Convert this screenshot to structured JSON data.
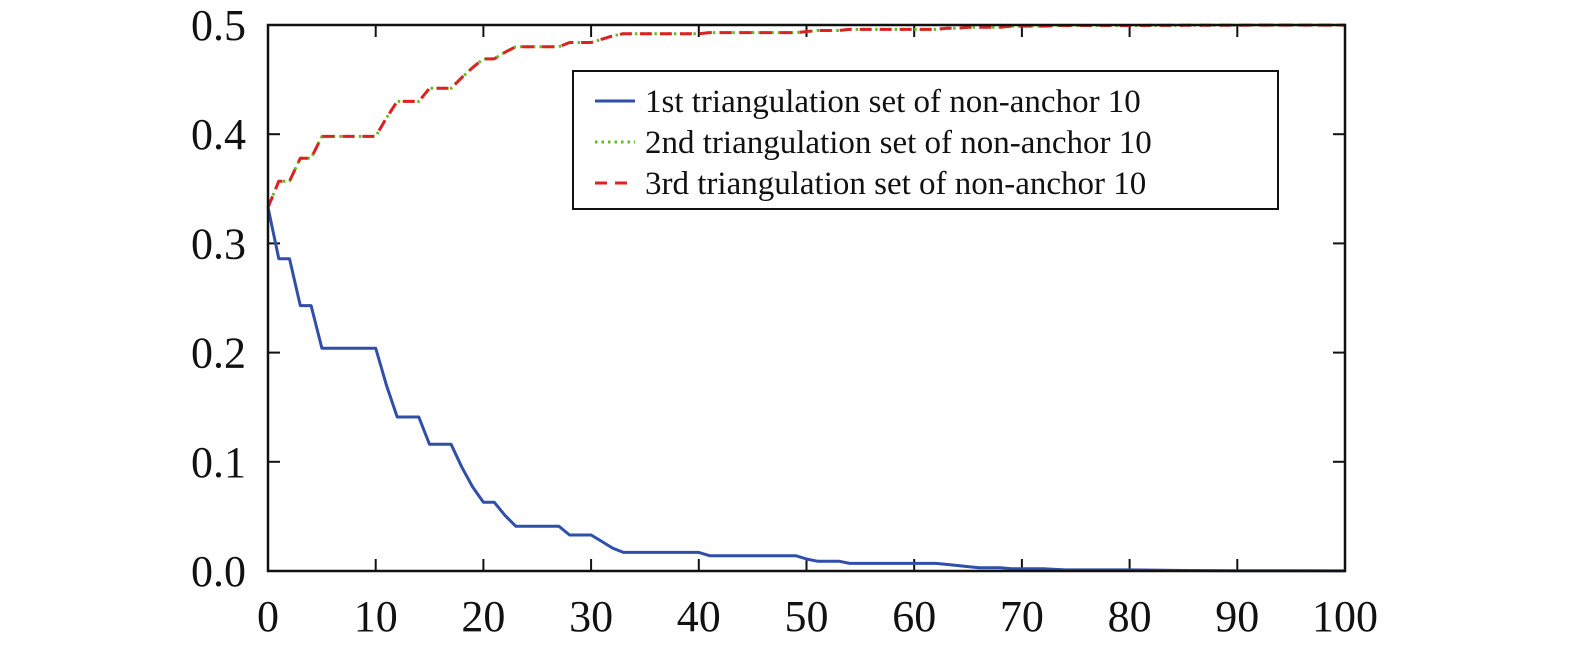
{
  "chart_data": {
    "type": "line",
    "title": "",
    "xlabel": "",
    "ylabel": "",
    "xlim": [
      0,
      100
    ],
    "ylim": [
      0,
      0.5
    ],
    "x_ticks": [
      0,
      10,
      20,
      30,
      40,
      50,
      60,
      70,
      80,
      90,
      100
    ],
    "y_ticks": [
      0.0,
      0.1,
      0.2,
      0.3,
      0.4,
      0.5
    ],
    "x_tick_labels": [
      "0",
      "10",
      "20",
      "30",
      "40",
      "50",
      "60",
      "70",
      "80",
      "90",
      "100"
    ],
    "y_tick_labels": [
      "0.0",
      "0.1",
      "0.2",
      "0.3",
      "0.4",
      "0.5"
    ],
    "grid": false,
    "legend_position": "top-right",
    "series": [
      {
        "name": "1st triangulation set of non-anchor 10",
        "color": "#2f4fa8",
        "style": "solid",
        "points": [
          [
            0,
            0.333
          ],
          [
            1,
            0.286
          ],
          [
            2,
            0.286
          ],
          [
            3,
            0.243
          ],
          [
            4,
            0.243
          ],
          [
            5,
            0.204
          ],
          [
            6,
            0.204
          ],
          [
            7,
            0.204
          ],
          [
            8,
            0.204
          ],
          [
            9,
            0.204
          ],
          [
            10,
            0.204
          ],
          [
            11,
            0.17
          ],
          [
            12,
            0.141
          ],
          [
            13,
            0.141
          ],
          [
            14,
            0.141
          ],
          [
            15,
            0.116
          ],
          [
            16,
            0.116
          ],
          [
            17,
            0.116
          ],
          [
            18,
            0.095
          ],
          [
            19,
            0.077
          ],
          [
            20,
            0.063
          ],
          [
            21,
            0.063
          ],
          [
            22,
            0.051
          ],
          [
            23,
            0.041
          ],
          [
            24,
            0.041
          ],
          [
            25,
            0.041
          ],
          [
            26,
            0.041
          ],
          [
            27,
            0.041
          ],
          [
            28,
            0.033
          ],
          [
            29,
            0.033
          ],
          [
            30,
            0.033
          ],
          [
            31,
            0.027
          ],
          [
            32,
            0.021
          ],
          [
            33,
            0.017
          ],
          [
            34,
            0.017
          ],
          [
            35,
            0.017
          ],
          [
            36,
            0.017
          ],
          [
            37,
            0.017
          ],
          [
            38,
            0.017
          ],
          [
            39,
            0.017
          ],
          [
            40,
            0.017
          ],
          [
            41,
            0.014
          ],
          [
            42,
            0.014
          ],
          [
            43,
            0.014
          ],
          [
            44,
            0.014
          ],
          [
            45,
            0.014
          ],
          [
            46,
            0.014
          ],
          [
            47,
            0.014
          ],
          [
            48,
            0.014
          ],
          [
            49,
            0.014
          ],
          [
            50,
            0.011
          ],
          [
            51,
            0.009
          ],
          [
            52,
            0.009
          ],
          [
            53,
            0.009
          ],
          [
            54,
            0.007
          ],
          [
            55,
            0.007
          ],
          [
            56,
            0.007
          ],
          [
            57,
            0.007
          ],
          [
            58,
            0.007
          ],
          [
            59,
            0.007
          ],
          [
            60,
            0.007
          ],
          [
            61,
            0.007
          ],
          [
            62,
            0.007
          ],
          [
            63,
            0.006
          ],
          [
            64,
            0.005
          ],
          [
            65,
            0.004
          ],
          [
            66,
            0.003
          ],
          [
            67,
            0.003
          ],
          [
            68,
            0.003
          ],
          [
            69,
            0.002
          ],
          [
            70,
            0.002
          ],
          [
            72,
            0.002
          ],
          [
            74,
            0.001
          ],
          [
            76,
            0.001
          ],
          [
            78,
            0.001
          ],
          [
            80,
            0.001
          ],
          [
            85,
            0.0005
          ],
          [
            90,
            0.0003
          ],
          [
            95,
            0.0002
          ],
          [
            100,
            0.0001
          ]
        ]
      },
      {
        "name": "2nd triangulation set of non-anchor 10",
        "color": "#66bb22",
        "style": "dotted",
        "points": [
          [
            0,
            0.333
          ],
          [
            1,
            0.357
          ],
          [
            2,
            0.357
          ],
          [
            3,
            0.378
          ],
          [
            4,
            0.378
          ],
          [
            5,
            0.398
          ],
          [
            6,
            0.398
          ],
          [
            7,
            0.398
          ],
          [
            8,
            0.398
          ],
          [
            9,
            0.398
          ],
          [
            10,
            0.398
          ],
          [
            11,
            0.415
          ],
          [
            12,
            0.43
          ],
          [
            13,
            0.43
          ],
          [
            14,
            0.43
          ],
          [
            15,
            0.442
          ],
          [
            16,
            0.442
          ],
          [
            17,
            0.442
          ],
          [
            18,
            0.452
          ],
          [
            19,
            0.461
          ],
          [
            20,
            0.469
          ],
          [
            21,
            0.469
          ],
          [
            22,
            0.475
          ],
          [
            23,
            0.48
          ],
          [
            24,
            0.48
          ],
          [
            25,
            0.48
          ],
          [
            26,
            0.48
          ],
          [
            27,
            0.48
          ],
          [
            28,
            0.484
          ],
          [
            29,
            0.484
          ],
          [
            30,
            0.484
          ],
          [
            31,
            0.487
          ],
          [
            32,
            0.49
          ],
          [
            33,
            0.492
          ],
          [
            34,
            0.492
          ],
          [
            35,
            0.492
          ],
          [
            36,
            0.492
          ],
          [
            37,
            0.492
          ],
          [
            38,
            0.492
          ],
          [
            39,
            0.492
          ],
          [
            40,
            0.492
          ],
          [
            41,
            0.493
          ],
          [
            42,
            0.493
          ],
          [
            43,
            0.493
          ],
          [
            44,
            0.493
          ],
          [
            45,
            0.493
          ],
          [
            46,
            0.493
          ],
          [
            47,
            0.493
          ],
          [
            48,
            0.493
          ],
          [
            49,
            0.493
          ],
          [
            50,
            0.494
          ],
          [
            51,
            0.495
          ],
          [
            52,
            0.495
          ],
          [
            53,
            0.495
          ],
          [
            54,
            0.496
          ],
          [
            55,
            0.496
          ],
          [
            56,
            0.496
          ],
          [
            57,
            0.496
          ],
          [
            58,
            0.496
          ],
          [
            59,
            0.496
          ],
          [
            60,
            0.496
          ],
          [
            61,
            0.496
          ],
          [
            62,
            0.496
          ],
          [
            63,
            0.497
          ],
          [
            64,
            0.497
          ],
          [
            65,
            0.498
          ],
          [
            66,
            0.498
          ],
          [
            67,
            0.498
          ],
          [
            68,
            0.498
          ],
          [
            69,
            0.499
          ],
          [
            70,
            0.499
          ],
          [
            72,
            0.499
          ],
          [
            74,
            0.4995
          ],
          [
            76,
            0.4995
          ],
          [
            78,
            0.4995
          ],
          [
            80,
            0.4995
          ],
          [
            85,
            0.4997
          ],
          [
            90,
            0.4998
          ],
          [
            95,
            0.4999
          ],
          [
            100,
            0.4999
          ]
        ]
      },
      {
        "name": "3rd triangulation set of non-anchor 10",
        "color": "#dd2222",
        "style": "dashed",
        "points": [
          [
            0,
            0.333
          ],
          [
            1,
            0.357
          ],
          [
            2,
            0.357
          ],
          [
            3,
            0.378
          ],
          [
            4,
            0.378
          ],
          [
            5,
            0.398
          ],
          [
            6,
            0.398
          ],
          [
            7,
            0.398
          ],
          [
            8,
            0.398
          ],
          [
            9,
            0.398
          ],
          [
            10,
            0.398
          ],
          [
            11,
            0.415
          ],
          [
            12,
            0.43
          ],
          [
            13,
            0.43
          ],
          [
            14,
            0.43
          ],
          [
            15,
            0.442
          ],
          [
            16,
            0.442
          ],
          [
            17,
            0.442
          ],
          [
            18,
            0.452
          ],
          [
            19,
            0.461
          ],
          [
            20,
            0.469
          ],
          [
            21,
            0.469
          ],
          [
            22,
            0.475
          ],
          [
            23,
            0.48
          ],
          [
            24,
            0.48
          ],
          [
            25,
            0.48
          ],
          [
            26,
            0.48
          ],
          [
            27,
            0.48
          ],
          [
            28,
            0.484
          ],
          [
            29,
            0.484
          ],
          [
            30,
            0.484
          ],
          [
            31,
            0.487
          ],
          [
            32,
            0.49
          ],
          [
            33,
            0.492
          ],
          [
            34,
            0.492
          ],
          [
            35,
            0.492
          ],
          [
            36,
            0.492
          ],
          [
            37,
            0.492
          ],
          [
            38,
            0.492
          ],
          [
            39,
            0.492
          ],
          [
            40,
            0.492
          ],
          [
            41,
            0.493
          ],
          [
            42,
            0.493
          ],
          [
            43,
            0.493
          ],
          [
            44,
            0.493
          ],
          [
            45,
            0.493
          ],
          [
            46,
            0.493
          ],
          [
            47,
            0.493
          ],
          [
            48,
            0.493
          ],
          [
            49,
            0.493
          ],
          [
            50,
            0.494
          ],
          [
            51,
            0.495
          ],
          [
            52,
            0.495
          ],
          [
            53,
            0.495
          ],
          [
            54,
            0.496
          ],
          [
            55,
            0.496
          ],
          [
            56,
            0.496
          ],
          [
            57,
            0.496
          ],
          [
            58,
            0.496
          ],
          [
            59,
            0.496
          ],
          [
            60,
            0.496
          ],
          [
            61,
            0.496
          ],
          [
            62,
            0.496
          ],
          [
            63,
            0.497
          ],
          [
            64,
            0.497
          ],
          [
            65,
            0.498
          ],
          [
            66,
            0.498
          ],
          [
            67,
            0.498
          ],
          [
            68,
            0.498
          ],
          [
            69,
            0.499
          ],
          [
            70,
            0.499
          ],
          [
            72,
            0.499
          ],
          [
            74,
            0.4995
          ],
          [
            76,
            0.4995
          ],
          [
            78,
            0.4995
          ],
          [
            80,
            0.4995
          ],
          [
            85,
            0.4997
          ],
          [
            90,
            0.4998
          ],
          [
            95,
            0.4999
          ],
          [
            100,
            0.4999
          ]
        ]
      }
    ]
  }
}
